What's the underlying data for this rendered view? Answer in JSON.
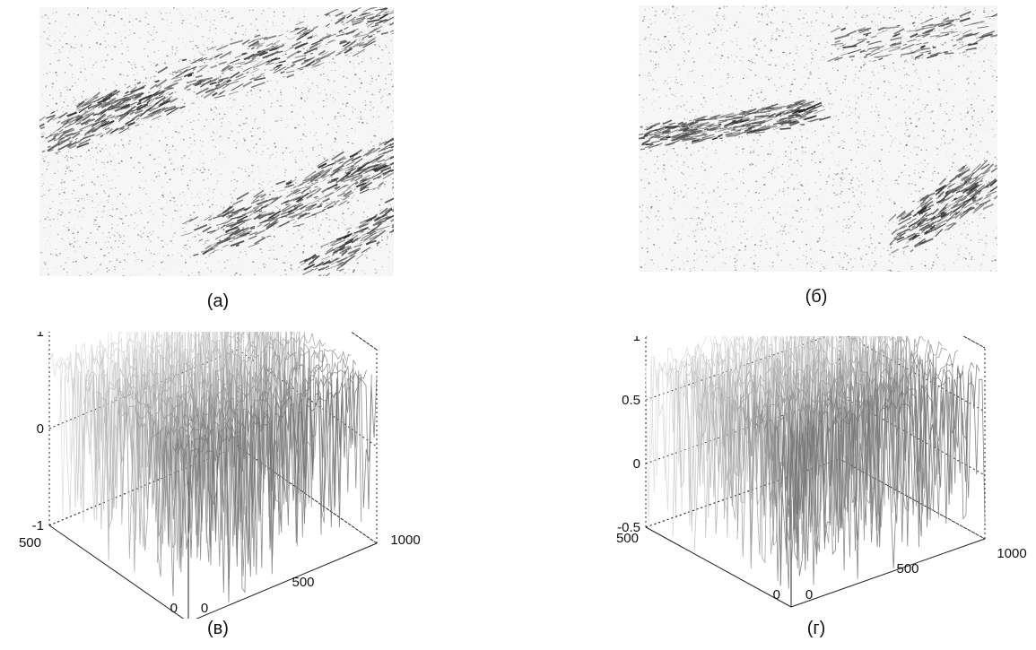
{
  "figure": {
    "captions": {
      "a": "(а)",
      "b": "(б)",
      "c": "(в)",
      "d": "(г)"
    }
  },
  "chart_data": [
    {
      "type": "surface",
      "panel": "(в)",
      "zlim": [
        -1,
        1
      ],
      "z_ticks": [
        "1",
        "0",
        "-1"
      ],
      "x_ticks": [
        "0",
        "500",
        "1000"
      ],
      "y_ticks": [
        "500",
        "0"
      ],
      "grid": true
    },
    {
      "type": "surface",
      "panel": "(г)",
      "zlim": [
        -0.5,
        1
      ],
      "z_ticks": [
        "1",
        "0.5",
        "0",
        "-0.5"
      ],
      "x_ticks": [
        "0",
        "500",
        "1000"
      ],
      "y_ticks": [
        "500",
        "0"
      ],
      "grid": true
    }
  ]
}
